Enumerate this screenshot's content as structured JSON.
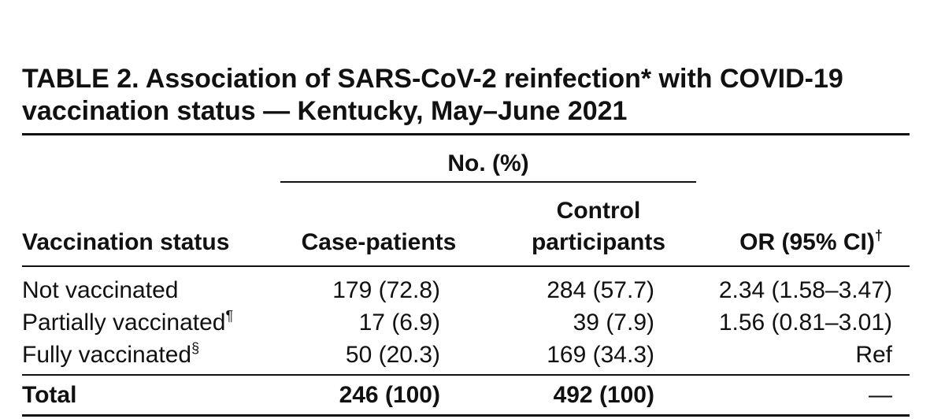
{
  "table": {
    "title_line1": "TABLE 2. Association of SARS-CoV-2 reinfection* with COVID-19",
    "title_line2": "vaccination status — Kentucky, May–June 2021",
    "span_header": "No. (%)",
    "columns": {
      "vaccination_status": "Vaccination status",
      "case_patients": "Case-patients",
      "control_line1": "Control",
      "control_line2": "participants",
      "or_label": "OR (95% CI)",
      "or_mark": "†"
    },
    "rows": [
      {
        "status": "Not vaccinated",
        "mark": "",
        "case": "179 (72.8)",
        "control": "284 (57.7)",
        "or": "2.34 (1.58–3.47)"
      },
      {
        "status": "Partially vaccinated",
        "mark": "¶",
        "case": "17 (6.9)",
        "control": "39 (7.9)",
        "or": "1.56 (0.81–3.01)"
      },
      {
        "status": "Fully vaccinated",
        "mark": "§",
        "case": "50 (20.3)",
        "control": "169 (34.3)",
        "or": "Ref"
      }
    ],
    "total": {
      "status": "Total",
      "case": "246 (100)",
      "control": "492 (100)",
      "or": "—"
    }
  }
}
